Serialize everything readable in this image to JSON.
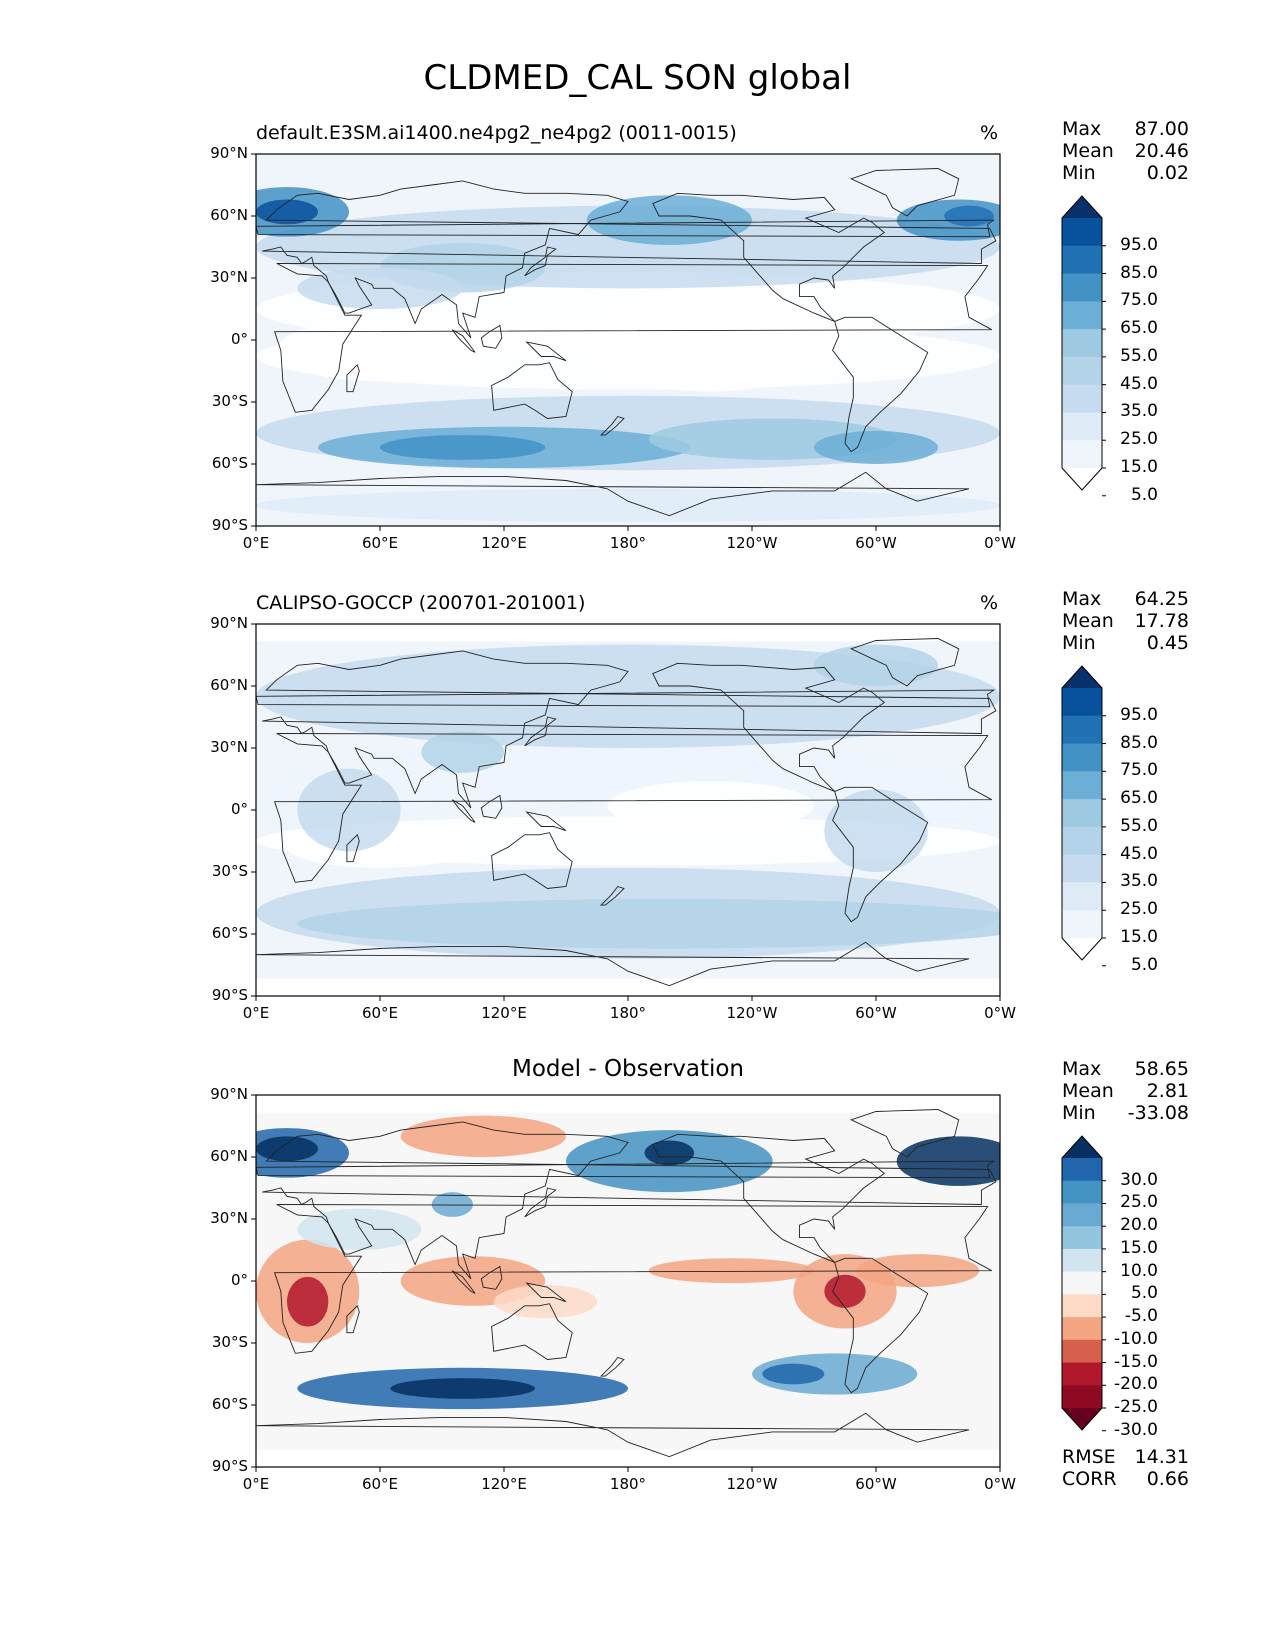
{
  "title": "CLDMED_CAL SON global",
  "lat_ticks": [
    "90°N",
    "60°N",
    "30°N",
    "0°",
    "30°S",
    "60°S",
    "90°S"
  ],
  "lon_ticks": [
    "0°E",
    "60°E",
    "120°E",
    "180°",
    "120°W",
    "60°W",
    "0°W"
  ],
  "panels": [
    {
      "name": "model",
      "title": "default.E3SM.ai1400.ne4pg2_ne4pg2 (0011-0015)",
      "units": "%",
      "stats": [
        {
          "label": "Max",
          "value": "87.00"
        },
        {
          "label": "Mean",
          "value": "20.46"
        },
        {
          "label": "Min",
          "value": "0.02"
        }
      ],
      "colorbar": {
        "labels": [
          "95.0",
          "85.0",
          "75.0",
          "65.0",
          "55.0",
          "45.0",
          "35.0",
          "25.0",
          "15.0",
          "5.0"
        ],
        "colors": [
          "#08306b",
          "#08519c",
          "#2171b5",
          "#4292c6",
          "#6baed6",
          "#9ecae1",
          "#b3d3e8",
          "#c6dbef",
          "#deebf7",
          "#eff5fb",
          "#ffffff"
        ]
      }
    },
    {
      "name": "observation",
      "title": "CALIPSO-GOCCP (200701-201001)",
      "units": "%",
      "stats": [
        {
          "label": "Max",
          "value": "64.25"
        },
        {
          "label": "Mean",
          "value": "17.78"
        },
        {
          "label": "Min",
          "value": "0.45"
        }
      ],
      "colorbar": {
        "labels": [
          "95.0",
          "85.0",
          "75.0",
          "65.0",
          "55.0",
          "45.0",
          "35.0",
          "25.0",
          "15.0",
          "5.0"
        ],
        "colors": [
          "#08306b",
          "#08519c",
          "#2171b5",
          "#4292c6",
          "#6baed6",
          "#9ecae1",
          "#b3d3e8",
          "#c6dbef",
          "#deebf7",
          "#eff5fb",
          "#ffffff"
        ]
      }
    },
    {
      "name": "difference",
      "title": "Model - Observation",
      "stats": [
        {
          "label": "Max",
          "value": "58.65"
        },
        {
          "label": "Mean",
          "value": "2.81"
        },
        {
          "label": "Min",
          "value": "-33.08"
        }
      ],
      "extra_stats": [
        {
          "label": "RMSE",
          "value": "14.31"
        },
        {
          "label": "CORR",
          "value": "0.66"
        }
      ],
      "colorbar": {
        "labels": [
          "30.0",
          "25.0",
          "20.0",
          "15.0",
          "10.0",
          "5.0",
          "-5.0",
          "-10.0",
          "-15.0",
          "-20.0",
          "-25.0",
          "-30.0"
        ],
        "colors": [
          "#053061",
          "#2166ac",
          "#4393c3",
          "#6aaad2",
          "#92c5de",
          "#d1e5f0",
          "#f7f7f7",
          "#fddbc7",
          "#f4a582",
          "#d6604d",
          "#b2182b",
          "#8e0a23",
          "#67001f"
        ]
      }
    }
  ]
}
